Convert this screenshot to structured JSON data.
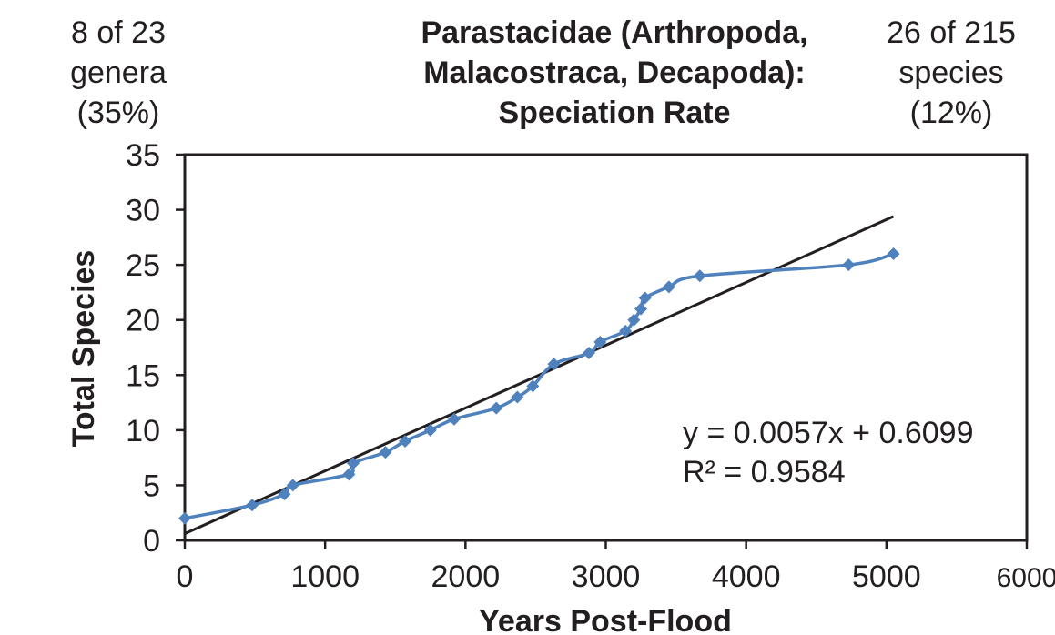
{
  "header": {
    "left_note": [
      "8 of 23",
      "genera",
      "(35%)"
    ],
    "right_note": [
      "26 of 215",
      "species",
      "(12%)"
    ],
    "title_lines": [
      "Parastacidae (Arthropoda,",
      "Malacostraca, Decapoda):",
      "Speciation Rate"
    ]
  },
  "chart_data": {
    "type": "scatter",
    "title": "Parastacidae (Arthropoda, Malacostraca, Decapoda): Speciation Rate",
    "xlabel": "Years Post-Flood",
    "ylabel": "Total Species",
    "xlim": [
      0,
      6000
    ],
    "ylim": [
      0,
      35
    ],
    "x_ticks": [
      "0",
      "1000",
      "2000",
      "3000",
      "4000",
      "5000",
      "6000"
    ],
    "y_ticks": [
      "0",
      "5",
      "10",
      "15",
      "20",
      "25",
      "30",
      "35"
    ],
    "grid": false,
    "series": [
      {
        "name": "Total Species",
        "color": "#4f81bd",
        "marker": "diamond",
        "smoothed_line": true,
        "points": [
          [
            0,
            2
          ],
          [
            480,
            3.2
          ],
          [
            710,
            4.2
          ],
          [
            770,
            5
          ],
          [
            1170,
            6
          ],
          [
            1200,
            7
          ],
          [
            1430,
            8
          ],
          [
            1570,
            9
          ],
          [
            1750,
            10
          ],
          [
            1920,
            11
          ],
          [
            2220,
            12
          ],
          [
            2370,
            13
          ],
          [
            2480,
            14
          ],
          [
            2630,
            16
          ],
          [
            2880,
            17
          ],
          [
            2960,
            18
          ],
          [
            3140,
            19
          ],
          [
            3200,
            20
          ],
          [
            3250,
            21
          ],
          [
            3280,
            22
          ],
          [
            3450,
            23
          ],
          [
            3670,
            24
          ],
          [
            4730,
            25
          ],
          [
            5050,
            26
          ]
        ]
      }
    ],
    "trendline": {
      "type": "linear",
      "color": "#231f20",
      "slope": 0.0057,
      "intercept": 0.6099,
      "x_range": [
        0,
        5050
      ],
      "equation_label": "y = 0.0057x + 0.6099",
      "r2_label": "R² = 0.9584"
    }
  }
}
